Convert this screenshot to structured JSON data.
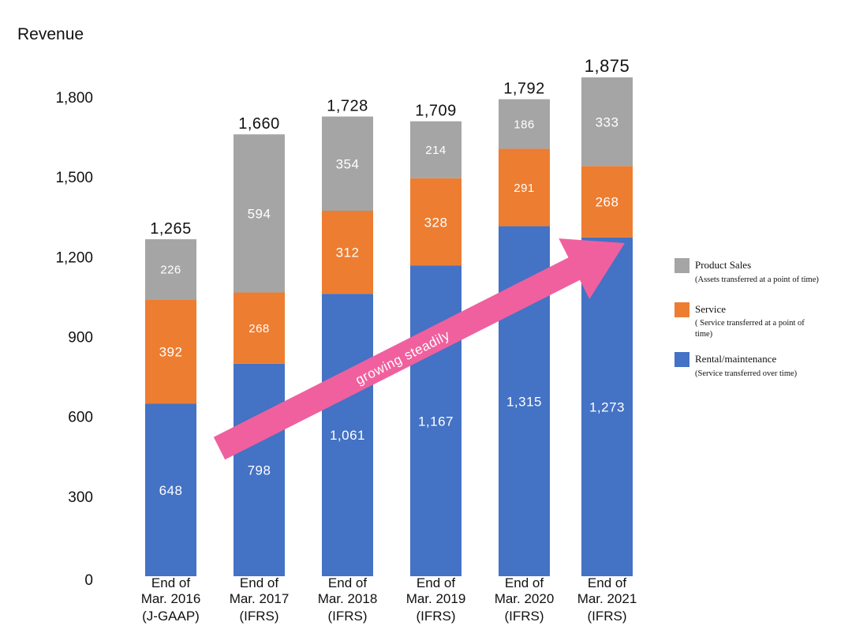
{
  "chart_data": {
    "type": "bar",
    "stacked": true,
    "ylabel": "Revenue",
    "ylim": [
      0,
      1800
    ],
    "yticks": [
      0,
      300,
      600,
      900,
      1200,
      1500,
      1800
    ],
    "ytick_labels": [
      "0",
      "300",
      "600",
      "900",
      "1,200",
      "1,500",
      "1,800"
    ],
    "categories": [
      [
        "End of",
        "Mar. 2016",
        "(J-GAAP)"
      ],
      [
        "End of",
        "Mar. 2017",
        "(IFRS)"
      ],
      [
        "End  of",
        "Mar. 2018",
        "(IFRS)"
      ],
      [
        "End  of",
        "Mar. 2019",
        "(IFRS)"
      ],
      [
        "End  of",
        "Mar. 2020",
        "(IFRS)"
      ],
      [
        "End  of",
        "Mar. 2021",
        "(IFRS)"
      ]
    ],
    "totals": [
      1265,
      1660,
      1728,
      1709,
      1792,
      1875
    ],
    "total_labels": [
      "1,265",
      "1,660",
      "1,728",
      "1,709",
      "1,792",
      "1,875"
    ],
    "series": [
      {
        "name": "Rental/maintenance",
        "color": "#4472c4",
        "values": [
          648,
          798,
          1061,
          1167,
          1315,
          1273
        ],
        "labels": [
          "648",
          "798",
          "1,061",
          "1,167",
          "1,315",
          "1,273"
        ]
      },
      {
        "name": "Service",
        "color": "#ed7d31",
        "values": [
          392,
          268,
          312,
          328,
          291,
          268
        ],
        "labels": [
          "392",
          "268",
          "312",
          "328",
          "291",
          "268"
        ]
      },
      {
        "name": "Product Sales",
        "color": "#a5a5a5",
        "values": [
          226,
          594,
          354,
          214,
          186,
          333
        ],
        "labels": [
          "226",
          "594",
          "354",
          "214",
          "186",
          "333"
        ]
      }
    ],
    "legend": {
      "position": "right",
      "items": [
        {
          "name": "Product Sales",
          "sub": "(Assets transferred at a point of time)",
          "color": "#a5a5a5"
        },
        {
          "name": "Service",
          "sub": "( Service transferred  at  a  point  of time)",
          "color": "#ed7d31"
        },
        {
          "name": "Rental/maintenance",
          "sub": "(Service transferred over time)",
          "color": "#4472c4"
        }
      ]
    },
    "annotation": {
      "text": "growing  steadily",
      "color": "#f0609e"
    }
  }
}
